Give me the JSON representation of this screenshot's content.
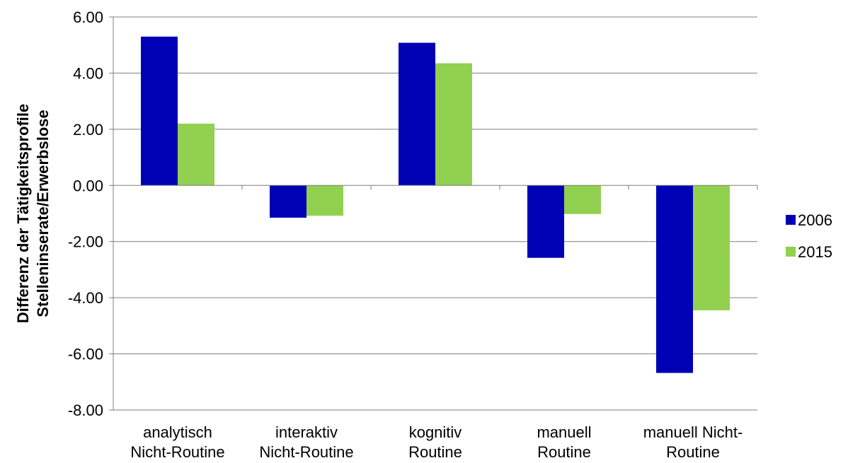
{
  "chart_data": {
    "type": "bar",
    "title": "",
    "xlabel": "",
    "ylabel_lines": [
      "Differenz der Tätigkeitsprofile",
      "Stelleninserate/Erwerbslose"
    ],
    "categories": [
      [
        "analytisch",
        "Nicht-Routine"
      ],
      [
        "interaktiv",
        "Nicht-Routine"
      ],
      [
        "kognitiv",
        "Routine"
      ],
      [
        "manuell",
        "Routine"
      ],
      [
        "manuell Nicht-",
        "Routine"
      ]
    ],
    "series": [
      {
        "name": "2006",
        "color": "#0000b4",
        "values": [
          5.3,
          -1.15,
          5.08,
          -2.58,
          -6.68
        ]
      },
      {
        "name": "2015",
        "color": "#92d050",
        "values": [
          2.2,
          -1.08,
          4.35,
          -1.02,
          -4.45
        ]
      }
    ],
    "ylim": [
      -8,
      6
    ],
    "yticks": [
      6,
      4,
      2,
      0,
      -2,
      -4,
      -6,
      -8
    ],
    "ytick_labels": [
      "6.00",
      "4.00",
      "2.00",
      "0.00",
      "-2.00",
      "-4.00",
      "-6.00",
      "-8.00"
    ],
    "grid": true,
    "legend_position": "right"
  }
}
